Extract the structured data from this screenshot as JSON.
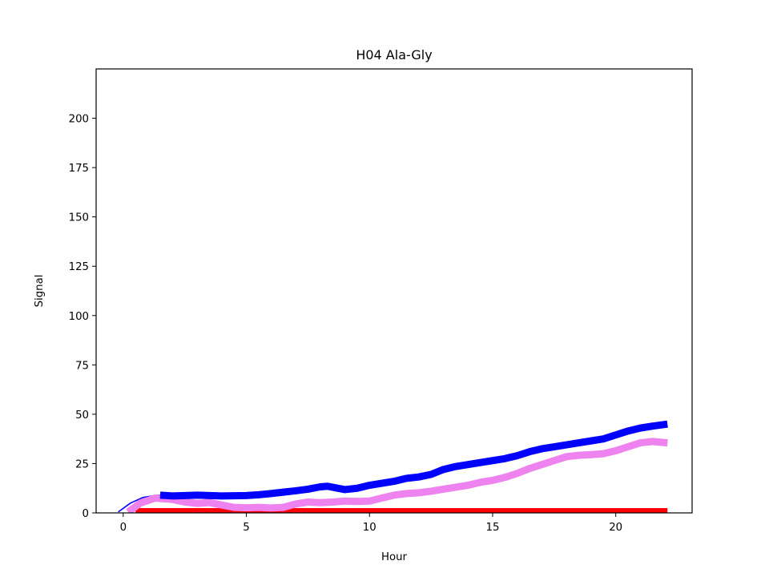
{
  "chart_data": {
    "type": "line",
    "title": "H04 Ala-Gly",
    "xlabel": "Hour",
    "ylabel": "Signal",
    "xlim": [
      -1.1,
      23.1
    ],
    "ylim": [
      0,
      225
    ],
    "xticks": [
      0,
      5,
      10,
      15,
      20
    ],
    "yticks": [
      0,
      25,
      50,
      75,
      100,
      125,
      150,
      175,
      200
    ],
    "grid": false,
    "series": [
      {
        "color": "#0000ff",
        "width_style": "thin",
        "x": [
          -0.2,
          0.3,
          0.8,
          1.3,
          1.5
        ],
        "y": [
          0.5,
          5.0,
          7.8,
          8.8,
          9.0
        ]
      },
      {
        "color": "#ff0000",
        "width_style": "thick",
        "x": [
          0.5,
          5,
          10,
          15,
          20,
          22.1
        ],
        "y": [
          0.6,
          0.6,
          0.6,
          0.6,
          0.6,
          0.6
        ]
      },
      {
        "color": "#ee82ee",
        "width_style": "thick",
        "x": [
          0.2,
          0.7,
          1.3,
          2.0,
          2.5,
          3.0,
          3.5,
          4.0,
          4.5,
          5.0,
          5.5,
          6.0,
          6.5,
          7.0,
          7.5,
          8.0,
          8.5,
          9.0,
          9.5,
          10.0,
          10.5,
          11.0,
          11.5,
          12.0,
          12.5,
          13.0,
          13.5,
          14.0,
          14.5,
          15.0,
          15.5,
          16.0,
          16.5,
          17.0,
          17.5,
          18.0,
          18.5,
          19.0,
          19.5,
          20.0,
          20.5,
          21.0,
          21.5,
          22.1
        ],
        "y": [
          0.5,
          5.0,
          7.5,
          6.8,
          5.5,
          4.8,
          5.2,
          4.0,
          2.8,
          2.6,
          2.8,
          2.5,
          2.8,
          4.5,
          5.5,
          5.2,
          5.5,
          6.0,
          5.8,
          6.0,
          7.5,
          9.0,
          9.8,
          10.2,
          11.0,
          12.0,
          13.0,
          14.0,
          15.5,
          16.5,
          18.0,
          20.0,
          22.5,
          24.5,
          26.5,
          28.5,
          29.2,
          29.5,
          30.0,
          31.5,
          33.5,
          35.5,
          36.2,
          35.5
        ]
      },
      {
        "color": "#0000ff",
        "width_style": "thick",
        "x": [
          1.5,
          2.0,
          2.5,
          3.0,
          3.5,
          4.0,
          4.5,
          5.0,
          5.5,
          6.0,
          6.5,
          7.0,
          7.5,
          8.0,
          8.3,
          8.7,
          9.0,
          9.5,
          10.0,
          10.5,
          11.0,
          11.5,
          12.0,
          12.5,
          13.0,
          13.5,
          14.0,
          14.5,
          15.0,
          15.5,
          16.0,
          16.5,
          17.0,
          17.5,
          18.0,
          18.5,
          19.0,
          19.5,
          20.0,
          20.5,
          21.0,
          21.5,
          22.1
        ],
        "y": [
          9.0,
          8.6,
          8.8,
          9.0,
          8.8,
          8.6,
          8.7,
          8.8,
          9.2,
          9.8,
          10.5,
          11.2,
          12.0,
          13.2,
          13.5,
          12.5,
          11.8,
          12.5,
          14.0,
          15.0,
          16.0,
          17.5,
          18.2,
          19.5,
          22.0,
          23.5,
          24.5,
          25.5,
          26.5,
          27.5,
          29.0,
          31.0,
          32.5,
          33.5,
          34.5,
          35.5,
          36.5,
          37.5,
          39.5,
          41.5,
          43.0,
          44.0,
          45.0
        ]
      }
    ]
  }
}
